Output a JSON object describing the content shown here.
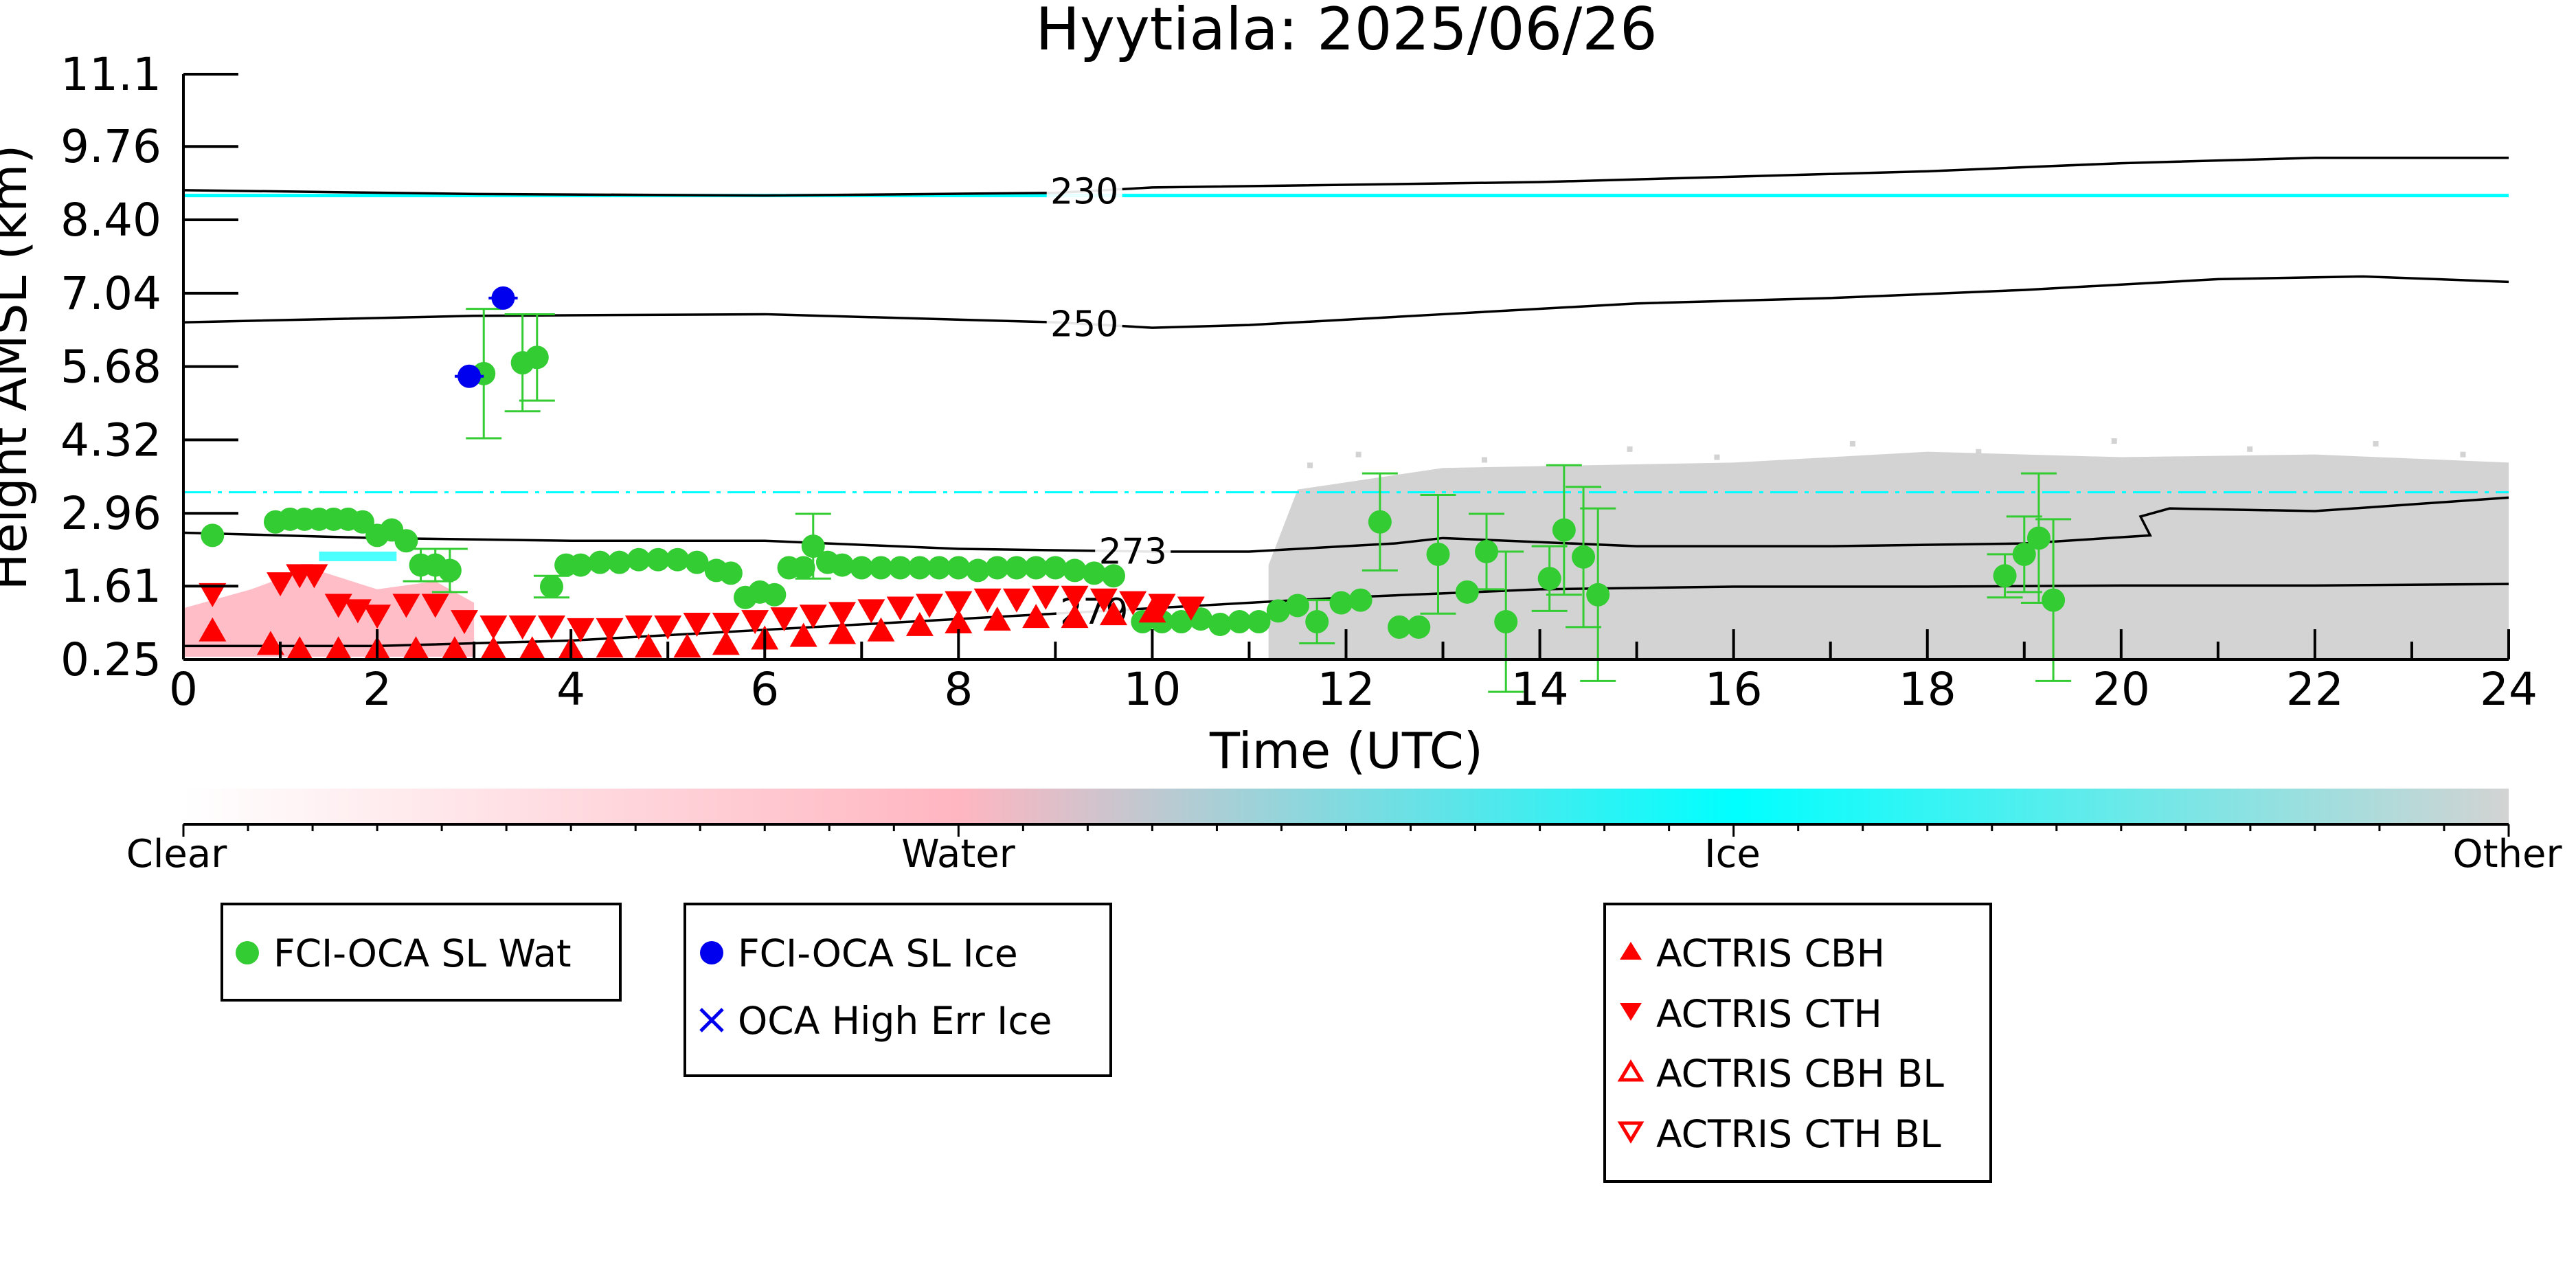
{
  "chart_data": {
    "type": "scatter",
    "title": "Hyytiala: 2025/06/26",
    "xlabel": "Time (UTC)",
    "ylabel": "Height AMSL (km)",
    "xlim": [
      0,
      24
    ],
    "ylim": [
      0.25,
      11.1
    ],
    "x_ticks": [
      "0",
      "2",
      "4",
      "6",
      "8",
      "10",
      "12",
      "14",
      "16",
      "18",
      "20",
      "22",
      "24"
    ],
    "y_ticks": [
      "0.25",
      "1.61",
      "2.96",
      "4.32",
      "5.68",
      "7.04",
      "8.40",
      "9.76",
      "11.1"
    ],
    "colorbar": {
      "labels": [
        "Clear",
        "Water",
        "Ice",
        "Other"
      ],
      "colors": [
        "#ffffff",
        "#ffb6c1",
        "#00ffff",
        "#d3d3d3"
      ]
    },
    "background_classification": {
      "water_region_hours": [
        0,
        3
      ],
      "ice_lines_km": [
        8.85,
        3.35
      ],
      "other_region_start_hour": 11.2,
      "other_top_km": 4.3
    },
    "temperature_contours": [
      {
        "label": "230",
        "x": [
          0,
          3,
          6,
          9,
          10,
          14,
          18,
          20,
          22,
          24
        ],
        "y": [
          8.95,
          8.88,
          8.85,
          8.9,
          9.0,
          9.1,
          9.3,
          9.45,
          9.55,
          9.55
        ]
      },
      {
        "label": "250",
        "x": [
          0,
          3,
          6,
          9,
          10,
          11,
          13,
          15,
          17,
          19,
          21,
          22.5,
          24
        ],
        "y": [
          6.5,
          6.62,
          6.65,
          6.5,
          6.4,
          6.45,
          6.65,
          6.85,
          6.95,
          7.1,
          7.3,
          7.35,
          7.25
        ]
      },
      {
        "label": "273",
        "x": [
          0,
          2,
          4,
          6,
          8,
          10,
          11,
          12.5,
          13,
          15,
          17,
          19,
          20.3,
          20.2,
          20.5,
          22,
          24
        ],
        "y": [
          2.6,
          2.5,
          2.45,
          2.45,
          2.3,
          2.25,
          2.25,
          2.4,
          2.5,
          2.35,
          2.35,
          2.4,
          2.55,
          2.9,
          3.05,
          3.0,
          3.25
        ]
      },
      {
        "label": "279",
        "x": [
          0,
          2,
          4,
          6,
          8,
          9,
          10,
          12,
          14,
          16,
          18,
          20,
          22,
          24
        ],
        "y": [
          0.5,
          0.5,
          0.6,
          0.8,
          1.0,
          1.1,
          1.2,
          1.4,
          1.55,
          1.6,
          1.6,
          1.62,
          1.62,
          1.65
        ]
      }
    ],
    "series": [
      {
        "name": "FCI-OCA SL Wat",
        "color": "#33cc33",
        "marker": "circle",
        "points": [
          {
            "x": 0.3,
            "y": 2.55
          },
          {
            "x": 0.95,
            "y": 2.8
          },
          {
            "x": 1.1,
            "y": 2.85
          },
          {
            "x": 1.25,
            "y": 2.85
          },
          {
            "x": 1.4,
            "y": 2.85
          },
          {
            "x": 1.55,
            "y": 2.85
          },
          {
            "x": 1.7,
            "y": 2.85
          },
          {
            "x": 1.85,
            "y": 2.8
          },
          {
            "x": 2.0,
            "y": 2.55
          },
          {
            "x": 2.15,
            "y": 2.65
          },
          {
            "x": 2.3,
            "y": 2.45
          },
          {
            "x": 2.45,
            "y": 2.0,
            "err": 0.3
          },
          {
            "x": 2.6,
            "y": 2.0,
            "err": 0.3
          },
          {
            "x": 2.75,
            "y": 1.9,
            "err": 0.4
          },
          {
            "x": 3.1,
            "y": 5.55,
            "err": 1.2
          },
          {
            "x": 3.5,
            "y": 5.75,
            "err": 0.9
          },
          {
            "x": 3.65,
            "y": 5.85,
            "err": 0.8
          },
          {
            "x": 3.8,
            "y": 1.6,
            "err": 0.2
          },
          {
            "x": 3.95,
            "y": 2.0
          },
          {
            "x": 4.1,
            "y": 2.0
          },
          {
            "x": 4.3,
            "y": 2.05
          },
          {
            "x": 4.5,
            "y": 2.05
          },
          {
            "x": 4.7,
            "y": 2.1
          },
          {
            "x": 4.9,
            "y": 2.1
          },
          {
            "x": 5.1,
            "y": 2.1
          },
          {
            "x": 5.3,
            "y": 2.05
          },
          {
            "x": 5.5,
            "y": 1.9
          },
          {
            "x": 5.65,
            "y": 1.85
          },
          {
            "x": 5.8,
            "y": 1.4
          },
          {
            "x": 5.95,
            "y": 1.5
          },
          {
            "x": 6.1,
            "y": 1.45
          },
          {
            "x": 6.25,
            "y": 1.95
          },
          {
            "x": 6.4,
            "y": 1.95
          },
          {
            "x": 6.5,
            "y": 2.35,
            "err": 0.6
          },
          {
            "x": 6.65,
            "y": 2.05
          },
          {
            "x": 6.8,
            "y": 2.0
          },
          {
            "x": 7.0,
            "y": 1.95
          },
          {
            "x": 7.2,
            "y": 1.95
          },
          {
            "x": 7.4,
            "y": 1.95
          },
          {
            "x": 7.6,
            "y": 1.95
          },
          {
            "x": 7.8,
            "y": 1.95
          },
          {
            "x": 8.0,
            "y": 1.95
          },
          {
            "x": 8.2,
            "y": 1.9
          },
          {
            "x": 8.4,
            "y": 1.95
          },
          {
            "x": 8.6,
            "y": 1.95
          },
          {
            "x": 8.8,
            "y": 1.95
          },
          {
            "x": 9.0,
            "y": 1.95
          },
          {
            "x": 9.2,
            "y": 1.9
          },
          {
            "x": 9.4,
            "y": 1.85
          },
          {
            "x": 9.6,
            "y": 1.8
          },
          {
            "x": 9.9,
            "y": 0.95
          },
          {
            "x": 10.1,
            "y": 0.95
          },
          {
            "x": 10.3,
            "y": 0.95
          },
          {
            "x": 10.5,
            "y": 1.0
          },
          {
            "x": 10.7,
            "y": 0.9
          },
          {
            "x": 10.9,
            "y": 0.95
          },
          {
            "x": 11.1,
            "y": 0.95
          },
          {
            "x": 11.3,
            "y": 1.15
          },
          {
            "x": 11.5,
            "y": 1.25
          },
          {
            "x": 11.7,
            "y": 0.95,
            "err": 0.4
          },
          {
            "x": 11.95,
            "y": 1.3
          },
          {
            "x": 12.15,
            "y": 1.35
          },
          {
            "x": 12.35,
            "y": 2.8,
            "err": 0.9
          },
          {
            "x": 12.55,
            "y": 0.85
          },
          {
            "x": 12.75,
            "y": 0.85
          },
          {
            "x": 12.95,
            "y": 2.2,
            "err": 1.1
          },
          {
            "x": 13.25,
            "y": 1.5
          },
          {
            "x": 13.45,
            "y": 2.25,
            "err": 0.7
          },
          {
            "x": 13.65,
            "y": 0.95,
            "err": 1.3
          },
          {
            "x": 14.1,
            "y": 1.75,
            "err": 0.6
          },
          {
            "x": 14.25,
            "y": 2.65,
            "err": 1.2
          },
          {
            "x": 14.45,
            "y": 2.15,
            "err": 1.3
          },
          {
            "x": 14.6,
            "y": 1.45,
            "err": 1.6
          },
          {
            "x": 18.8,
            "y": 1.8,
            "err": 0.4
          },
          {
            "x": 19.0,
            "y": 2.2,
            "err": 0.7
          },
          {
            "x": 19.15,
            "y": 2.5,
            "err": 1.2
          },
          {
            "x": 19.3,
            "y": 1.35,
            "err": 1.5
          }
        ]
      },
      {
        "name": "FCI-OCA SL Ice",
        "color": "#0000ee",
        "marker": "circle",
        "points": [
          {
            "x": 2.95,
            "y": 5.5,
            "xerr": 0.15
          },
          {
            "x": 3.3,
            "y": 6.95,
            "xerr": 0.15
          }
        ]
      },
      {
        "name": "OCA High Err Ice",
        "color": "#0000ee",
        "marker": "x",
        "points": []
      },
      {
        "name": "ACTRIS CBH",
        "color": "#ff0000",
        "marker": "triangle-up",
        "points": [
          {
            "x": 0.3,
            "y": 0.75
          },
          {
            "x": 0.9,
            "y": 0.5
          },
          {
            "x": 1.2,
            "y": 0.4
          },
          {
            "x": 1.6,
            "y": 0.4
          },
          {
            "x": 2.0,
            "y": 0.4
          },
          {
            "x": 2.4,
            "y": 0.4
          },
          {
            "x": 2.8,
            "y": 0.4
          },
          {
            "x": 3.2,
            "y": 0.4
          },
          {
            "x": 3.6,
            "y": 0.4
          },
          {
            "x": 4.0,
            "y": 0.4
          },
          {
            "x": 4.4,
            "y": 0.45
          },
          {
            "x": 4.8,
            "y": 0.45
          },
          {
            "x": 5.2,
            "y": 0.45
          },
          {
            "x": 5.6,
            "y": 0.5
          },
          {
            "x": 6.0,
            "y": 0.6
          },
          {
            "x": 6.4,
            "y": 0.65
          },
          {
            "x": 6.8,
            "y": 0.7
          },
          {
            "x": 7.2,
            "y": 0.75
          },
          {
            "x": 7.6,
            "y": 0.85
          },
          {
            "x": 8.0,
            "y": 0.9
          },
          {
            "x": 8.4,
            "y": 0.95
          },
          {
            "x": 8.8,
            "y": 1.0
          },
          {
            "x": 9.2,
            "y": 1.0
          },
          {
            "x": 9.6,
            "y": 1.05
          },
          {
            "x": 10.0,
            "y": 1.1
          }
        ]
      },
      {
        "name": "ACTRIS CTH",
        "color": "#ff0000",
        "marker": "triangle-down",
        "points": [
          {
            "x": 0.3,
            "y": 1.5
          },
          {
            "x": 1.0,
            "y": 1.7
          },
          {
            "x": 1.2,
            "y": 1.85
          },
          {
            "x": 1.35,
            "y": 1.85
          },
          {
            "x": 1.6,
            "y": 1.3
          },
          {
            "x": 1.8,
            "y": 1.2
          },
          {
            "x": 2.0,
            "y": 1.1
          },
          {
            "x": 2.3,
            "y": 1.3
          },
          {
            "x": 2.6,
            "y": 1.3
          },
          {
            "x": 2.9,
            "y": 1.0
          },
          {
            "x": 3.2,
            "y": 0.9
          },
          {
            "x": 3.5,
            "y": 0.9
          },
          {
            "x": 3.8,
            "y": 0.9
          },
          {
            "x": 4.1,
            "y": 0.85
          },
          {
            "x": 4.4,
            "y": 0.85
          },
          {
            "x": 4.7,
            "y": 0.9
          },
          {
            "x": 5.0,
            "y": 0.9
          },
          {
            "x": 5.3,
            "y": 0.95
          },
          {
            "x": 5.6,
            "y": 0.95
          },
          {
            "x": 5.9,
            "y": 1.0
          },
          {
            "x": 6.2,
            "y": 1.05
          },
          {
            "x": 6.5,
            "y": 1.1
          },
          {
            "x": 6.8,
            "y": 1.15
          },
          {
            "x": 7.1,
            "y": 1.2
          },
          {
            "x": 7.4,
            "y": 1.25
          },
          {
            "x": 7.7,
            "y": 1.3
          },
          {
            "x": 8.0,
            "y": 1.35
          },
          {
            "x": 8.3,
            "y": 1.4
          },
          {
            "x": 8.6,
            "y": 1.4
          },
          {
            "x": 8.9,
            "y": 1.45
          },
          {
            "x": 9.2,
            "y": 1.45
          },
          {
            "x": 9.5,
            "y": 1.4
          },
          {
            "x": 9.8,
            "y": 1.35
          },
          {
            "x": 10.1,
            "y": 1.3
          },
          {
            "x": 10.4,
            "y": 1.25
          }
        ]
      },
      {
        "name": "ACTRIS CBH BL",
        "color": "#ff0000",
        "marker": "triangle-up-open",
        "points": []
      },
      {
        "name": "ACTRIS CTH BL",
        "color": "#ff0000",
        "marker": "triangle-down-open",
        "points": []
      }
    ]
  }
}
